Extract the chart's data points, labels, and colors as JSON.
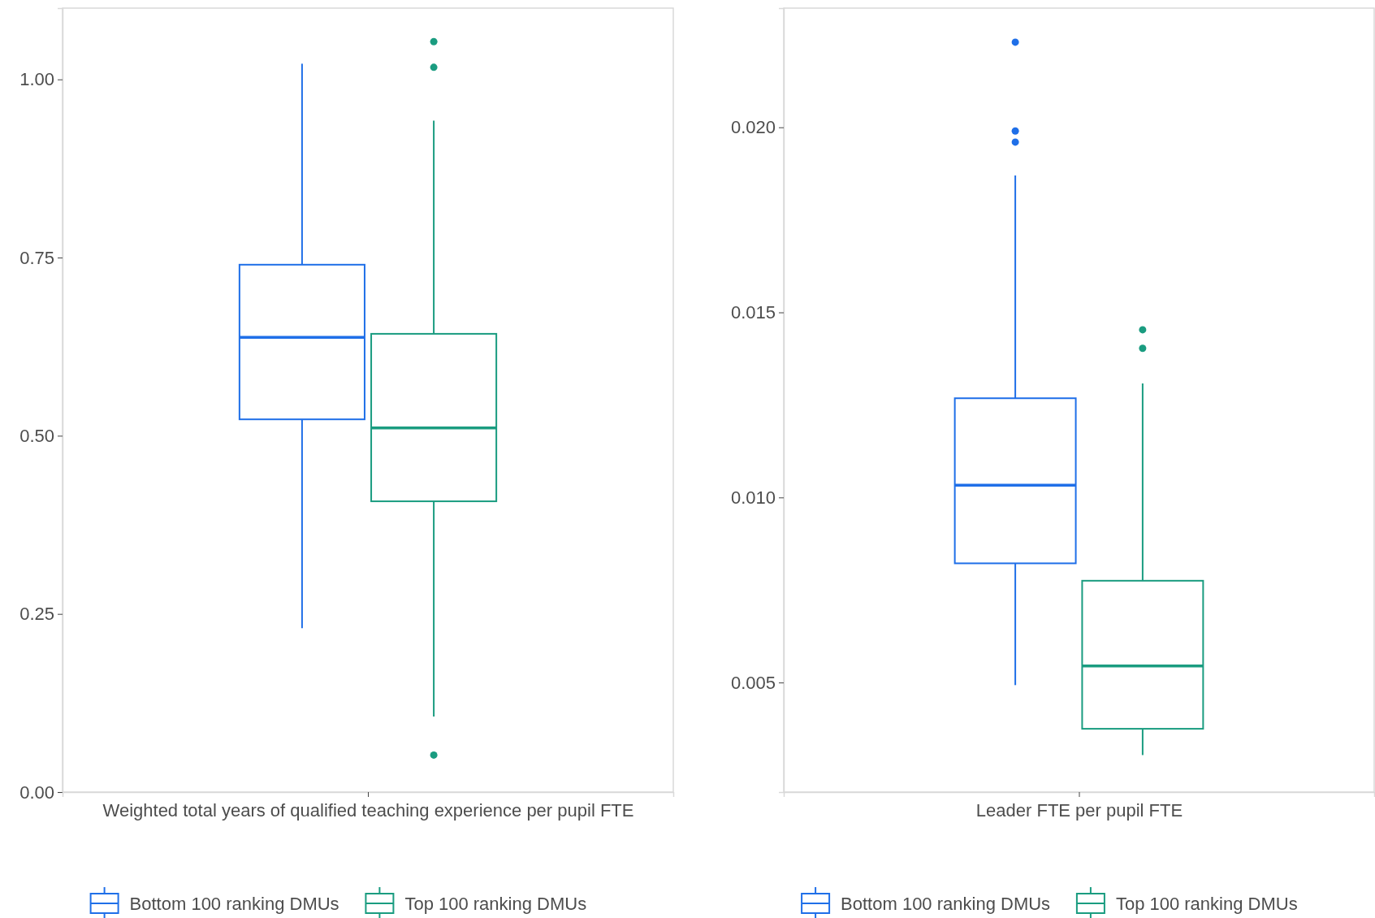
{
  "chart_data": [
    {
      "type": "box",
      "categories": [
        "Weighted total years of qualified teaching experience per pupil FTE"
      ],
      "ylim": [
        0,
        1.1
      ],
      "yticks": [
        {
          "value": 0,
          "label": "0.00"
        },
        {
          "value": 0.25,
          "label": "0.25"
        },
        {
          "value": 0.5,
          "label": "0.50"
        },
        {
          "value": 0.75,
          "label": "0.75"
        },
        {
          "value": 1,
          "label": "1.00"
        }
      ],
      "grid": false,
      "legend": "bottom",
      "series": [
        {
          "name": "Bottom 100 ranking DMUs",
          "color": "#1f6fe8",
          "boxes": [
            {
              "low": 0.23,
              "q1": 0.523,
              "median": 0.638,
              "q3": 0.74,
              "high": 1.022
            }
          ]
        },
        {
          "name": "Top 100 ranking DMUs",
          "color": "#1a9c80",
          "boxes": [
            {
              "low": 0.106,
              "q1": 0.408,
              "median": 0.511,
              "q3": 0.643,
              "high": 0.942,
              "outliers": [
                1.053,
                1.017,
                0.052
              ]
            }
          ]
        }
      ]
    },
    {
      "type": "box",
      "categories": [
        "Leader FTE per pupil FTE"
      ],
      "ylim": [
        0.00204,
        0.02322
      ],
      "yticks": [
        {
          "value": 0.005,
          "label": "0.005"
        },
        {
          "value": 0.01,
          "label": "0.010"
        },
        {
          "value": 0.015,
          "label": "0.015"
        },
        {
          "value": 0.02,
          "label": "0.020"
        }
      ],
      "grid": false,
      "legend": "bottom",
      "series": [
        {
          "name": "Bottom 100 ranking DMUs",
          "color": "#1f6fe8",
          "boxes": [
            {
              "low": 0.00493,
              "q1": 0.00822,
              "median": 0.01033,
              "q3": 0.01268,
              "high": 0.0187,
              "outliers": [
                0.0223,
                0.0199,
                0.0196
              ]
            }
          ]
        },
        {
          "name": "Top 100 ranking DMUs",
          "color": "#1a9c80",
          "boxes": [
            {
              "low": 0.00304,
              "q1": 0.00375,
              "median": 0.00545,
              "q3": 0.00775,
              "high": 0.01308,
              "outliers": [
                0.01453,
                0.01403
              ]
            }
          ]
        }
      ]
    }
  ]
}
